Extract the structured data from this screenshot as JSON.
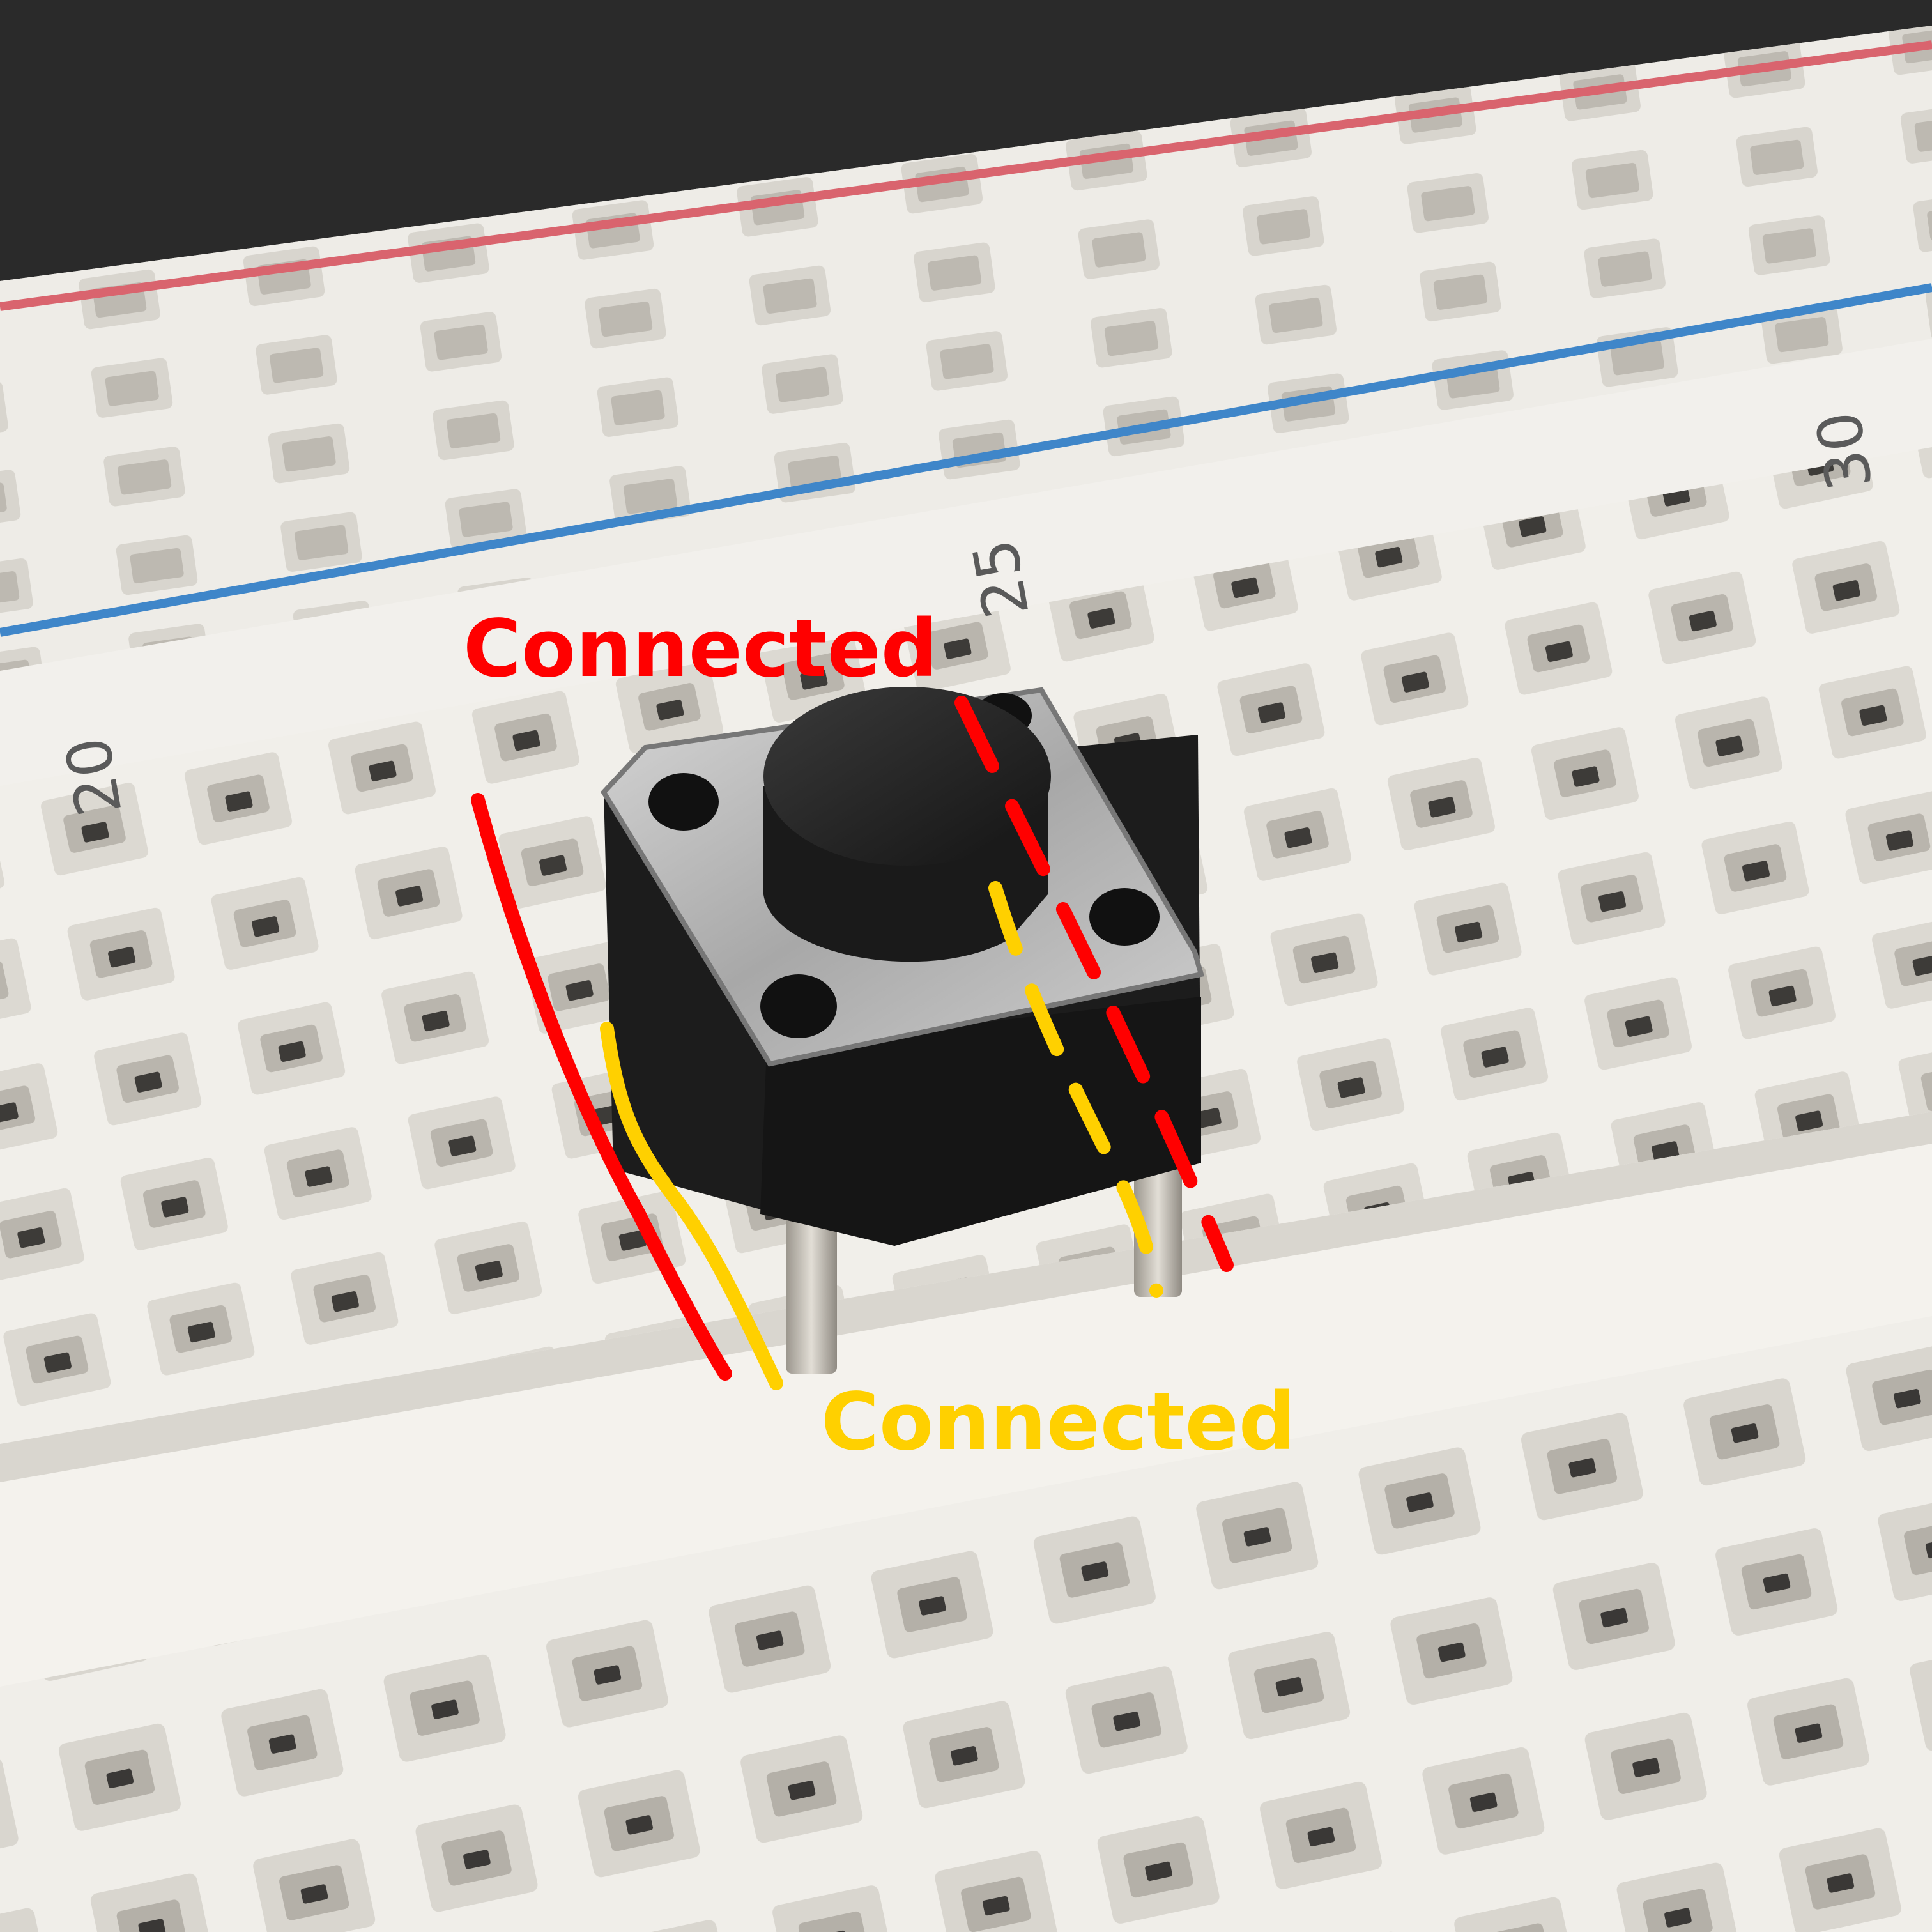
{
  "photo": {
    "subject": "tactile push button on breadboard"
  },
  "breadboard": {
    "row_label_20": "20",
    "row_label_25": "25",
    "row_label_30": "30",
    "rail_colors": {
      "positive": "#d9646e",
      "negative": "#3f86c9"
    }
  },
  "annotations": {
    "top_label": "Connected",
    "top_color": "#ff0000",
    "bottom_label": "Connected",
    "bottom_color": "#ffd000"
  }
}
